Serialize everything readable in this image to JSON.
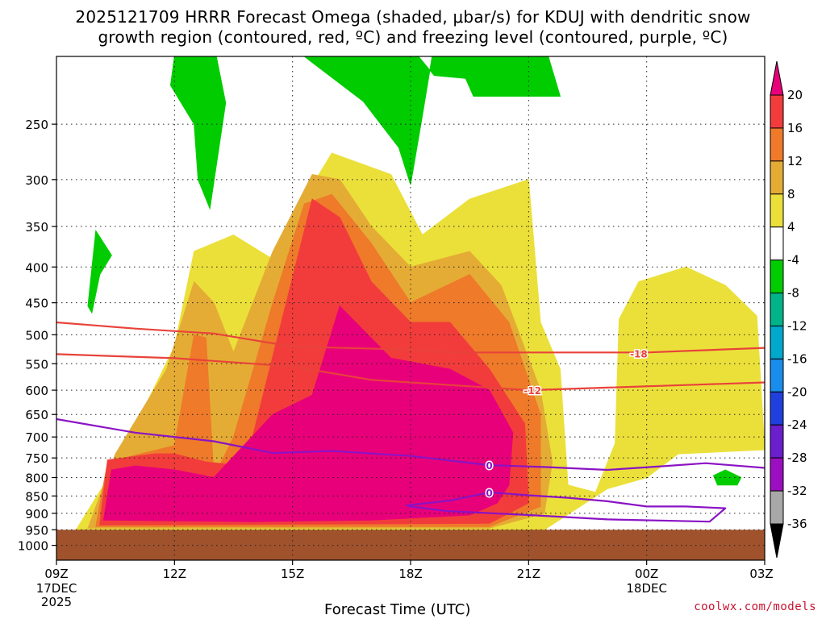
{
  "header": {
    "title_line1": "2025121709 HRRR Forecast Omega (shaded, μbar/s) for KDUJ with dendritic snow",
    "title_line2": "growth region (contoured, red, ºC) and freezing level (contoured, purple, ºC)"
  },
  "footer": {
    "credit": "coolwx.com/models"
  },
  "chart_data": {
    "type": "heatmap",
    "title": "2025121709 HRRR Forecast Omega (shaded, μbar/s) for KDUJ with dendritic snow growth region (contoured, red, ºC) and freezing level (contoured, purple, ºC)",
    "xlabel": "Forecast Time (UTC)",
    "ylabel": "",
    "x_ticks": [
      {
        "hour": 0,
        "label": "09Z",
        "sub": [
          "17DEC",
          "2025"
        ]
      },
      {
        "hour": 3,
        "label": "12Z",
        "sub": []
      },
      {
        "hour": 6,
        "label": "15Z",
        "sub": []
      },
      {
        "hour": 9,
        "label": "18Z",
        "sub": []
      },
      {
        "hour": 12,
        "label": "21Z",
        "sub": []
      },
      {
        "hour": 15,
        "label": "00Z",
        "sub": [
          "18DEC"
        ]
      },
      {
        "hour": 18,
        "label": "03Z",
        "sub": []
      }
    ],
    "y_ticks": [
      250,
      300,
      350,
      400,
      450,
      500,
      550,
      600,
      650,
      700,
      750,
      800,
      850,
      900,
      950,
      1000
    ],
    "ylim": [
      1050,
      200
    ],
    "y_scale": "log-pressure (hPa)",
    "grid": true,
    "ground_below_hpa": 950,
    "colorbar": {
      "labels": [
        "20",
        "16",
        "12",
        "8",
        "4",
        "-4",
        "-8",
        "-12",
        "-16",
        "-20",
        "-24",
        "-28",
        "-32",
        "-36"
      ],
      "colors": [
        "#e8007a",
        "#f23c3c",
        "#ee7a2a",
        "#e5ac35",
        "#ebe03a",
        "#ffffff",
        "#00cc00",
        "#00b389",
        "#00a8cc",
        "#1a8ceb",
        "#2040dd",
        "#6a1ecc",
        "#9c0fc0",
        "#a8a8a8",
        "#000000"
      ]
    },
    "shading": [
      {
        "level": "4 to 8",
        "color": "#ebe03a",
        "outline": [
          [
            0.5,
            950
          ],
          [
            1.5,
            770
          ],
          [
            3,
            520
          ],
          [
            3.5,
            380
          ],
          [
            4.5,
            360
          ],
          [
            5.5,
            390
          ],
          [
            6,
            340
          ],
          [
            7,
            275
          ],
          [
            8.5,
            295
          ],
          [
            9.3,
            360
          ],
          [
            10.5,
            320
          ],
          [
            12,
            300
          ],
          [
            12.3,
            480
          ],
          [
            12.8,
            560
          ],
          [
            13,
            820
          ],
          [
            13.7,
            840
          ],
          [
            14.2,
            715
          ],
          [
            14.3,
            475
          ],
          [
            14.8,
            420
          ],
          [
            16,
            400
          ],
          [
            17,
            425
          ],
          [
            17.8,
            470
          ],
          [
            18,
            730
          ],
          [
            15.8,
            740
          ],
          [
            15,
            800
          ],
          [
            14,
            830
          ],
          [
            12.4,
            950
          ]
        ]
      },
      {
        "level": "8 to 12",
        "color": "#e5ac35",
        "outline": [
          [
            0.8,
            945
          ],
          [
            1.5,
            740
          ],
          [
            2.8,
            560
          ],
          [
            3.5,
            420
          ],
          [
            4,
            450
          ],
          [
            4.5,
            530
          ],
          [
            5.5,
            380
          ],
          [
            6.5,
            295
          ],
          [
            7.2,
            300
          ],
          [
            8,
            350
          ],
          [
            9,
            400
          ],
          [
            10.5,
            380
          ],
          [
            11.3,
            425
          ],
          [
            12.3,
            600
          ],
          [
            12.6,
            760
          ],
          [
            12.4,
            900
          ],
          [
            11,
            945
          ]
        ]
      },
      {
        "level": "12 to 16",
        "color": "#ee7a2a",
        "outline": [
          [
            1,
            940
          ],
          [
            1.3,
            760
          ],
          [
            3,
            720
          ],
          [
            3.5,
            500
          ],
          [
            3.8,
            505
          ],
          [
            4,
            800
          ],
          [
            4.5,
            700
          ],
          [
            5.5,
            450
          ],
          [
            6.3,
            325
          ],
          [
            7,
            315
          ],
          [
            8,
            370
          ],
          [
            9,
            450
          ],
          [
            10.5,
            410
          ],
          [
            11.5,
            480
          ],
          [
            12.3,
            650
          ],
          [
            12.3,
            880
          ],
          [
            11,
            940
          ]
        ]
      },
      {
        "level": "16 to 20",
        "color": "#f23c3c",
        "outline": [
          [
            1.1,
            935
          ],
          [
            1.3,
            755
          ],
          [
            2.5,
            740
          ],
          [
            3,
            740
          ],
          [
            3.8,
            760
          ],
          [
            4.8,
            770
          ],
          [
            6.5,
            320
          ],
          [
            7.2,
            340
          ],
          [
            8,
            420
          ],
          [
            9,
            480
          ],
          [
            10,
            480
          ],
          [
            11,
            560
          ],
          [
            11.9,
            670
          ],
          [
            12,
            870
          ],
          [
            11,
            930
          ]
        ]
      },
      {
        "level": "> 20",
        "color": "#e8007a",
        "outline": [
          [
            1.2,
            920
          ],
          [
            1.4,
            780
          ],
          [
            2,
            770
          ],
          [
            3,
            780
          ],
          [
            4,
            800
          ],
          [
            5.5,
            650
          ],
          [
            6.5,
            610
          ],
          [
            7.2,
            455
          ],
          [
            8.5,
            540
          ],
          [
            10,
            560
          ],
          [
            11,
            600
          ],
          [
            11.6,
            690
          ],
          [
            11.5,
            820
          ],
          [
            11.2,
            870
          ],
          [
            10.5,
            905
          ],
          [
            8,
            920
          ],
          [
            5,
            925
          ]
        ]
      },
      {
        "level": "-4 to -8",
        "color": "#00cc00",
        "outline": [
          [
            3,
            200
          ],
          [
            4,
            192
          ],
          [
            4.3,
            233
          ],
          [
            3.9,
            330
          ],
          [
            3.6,
            300
          ],
          [
            3.5,
            250
          ],
          [
            2.9,
            220
          ]
        ]
      },
      {
        "level": "-4 to -8",
        "color": "#00cc00",
        "outline": [
          [
            6,
            200
          ],
          [
            8,
            195
          ],
          [
            9.2,
            200
          ],
          [
            9.6,
            213
          ],
          [
            10.4,
            215
          ],
          [
            10.6,
            228
          ],
          [
            12.8,
            228
          ],
          [
            12.5,
            200
          ],
          [
            9.6,
            192
          ],
          [
            9.3,
            243
          ],
          [
            9,
            305
          ],
          [
            8.7,
            270
          ],
          [
            7.8,
            232
          ],
          [
            6.3,
            200
          ]
        ]
      },
      {
        "level": "-4 to -8",
        "color": "#00cc00",
        "outline": [
          [
            0.8,
            455
          ],
          [
            1,
            355
          ],
          [
            1.4,
            385
          ],
          [
            1.1,
            410
          ],
          [
            0.9,
            465
          ]
        ]
      },
      {
        "level": "-4 to -8",
        "color": "#00cc00",
        "outline": [
          [
            16.7,
            795
          ],
          [
            17,
            780
          ],
          [
            17.4,
            800
          ],
          [
            17.3,
            820
          ],
          [
            16.8,
            820
          ]
        ]
      }
    ],
    "contours": [
      {
        "name": "-18",
        "color": "#e8433a",
        "label": "-18",
        "label_at": [
          14.8,
          532
        ],
        "points": [
          [
            0,
            480
          ],
          [
            2,
            490
          ],
          [
            4,
            498
          ],
          [
            6,
            520
          ],
          [
            9,
            525
          ],
          [
            10,
            530
          ],
          [
            13,
            530
          ],
          [
            15,
            530
          ],
          [
            18,
            522
          ]
        ]
      },
      {
        "name": "-12",
        "color": "#e8433a",
        "label": "-12",
        "label_at": [
          12.1,
          600
        ],
        "points": [
          [
            0,
            533
          ],
          [
            3,
            540
          ],
          [
            6,
            555
          ],
          [
            8,
            580
          ],
          [
            10,
            590
          ],
          [
            12,
            600
          ],
          [
            14,
            595
          ],
          [
            16,
            590
          ],
          [
            18,
            585
          ]
        ]
      },
      {
        "name": "0",
        "color": "#8a13c4",
        "label": "0",
        "label_at": [
          11,
          768
        ],
        "points": [
          [
            0,
            660
          ],
          [
            2,
            690
          ],
          [
            4,
            710
          ],
          [
            5.5,
            738
          ],
          [
            7,
            733
          ],
          [
            9,
            745
          ],
          [
            11,
            768
          ],
          [
            12.5,
            773
          ],
          [
            14,
            780
          ],
          [
            15.5,
            770
          ],
          [
            16.5,
            763
          ],
          [
            18,
            775
          ]
        ]
      },
      {
        "name": "0",
        "color": "#8a13c4",
        "label": "0",
        "label_at": [
          11,
          840
        ],
        "points": [
          [
            11,
            840
          ],
          [
            12,
            848
          ],
          [
            13,
            855
          ],
          [
            14,
            865
          ],
          [
            15,
            880
          ],
          [
            16,
            880
          ],
          [
            17,
            885
          ],
          [
            16.6,
            925
          ],
          [
            14,
            918
          ],
          [
            12,
            905
          ],
          [
            9.9,
            893
          ],
          [
            9,
            880
          ],
          [
            8.9,
            877
          ],
          [
            10,
            863
          ],
          [
            11,
            840
          ]
        ]
      }
    ]
  }
}
